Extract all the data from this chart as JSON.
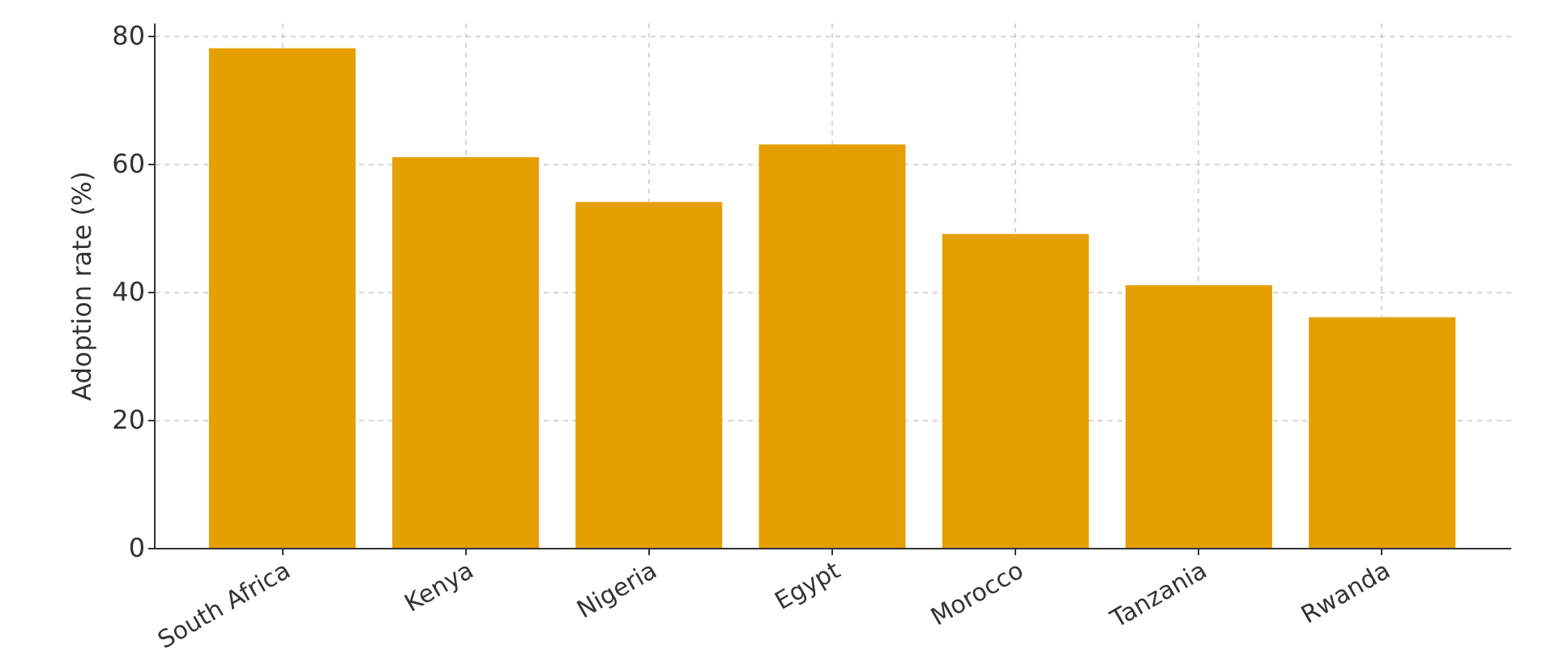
{
  "chart_data": {
    "type": "bar",
    "ylabel": "Adoption rate (%)",
    "categories": [
      "South Africa",
      "Kenya",
      "Nigeria",
      "Egypt",
      "Morocco",
      "Tanzania",
      "Rwanda"
    ],
    "values": [
      78,
      61,
      54,
      63,
      49,
      41,
      36
    ],
    "color": "#e69f00",
    "ylim": [
      0,
      82
    ],
    "yticks": [
      0,
      20,
      40,
      60,
      80
    ],
    "grid": true
  }
}
